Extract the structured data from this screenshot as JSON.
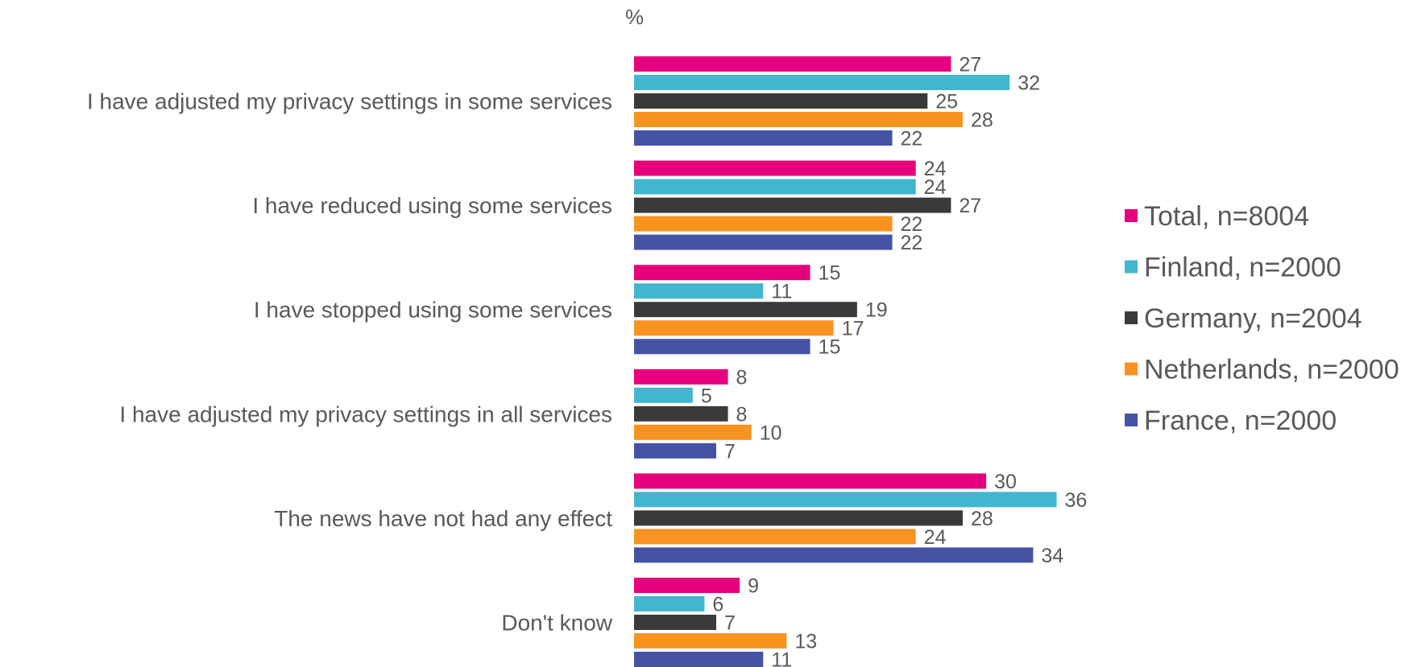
{
  "chart_data": {
    "type": "bar",
    "orientation": "horizontal",
    "unit": "%",
    "categories": [
      "I have adjusted my privacy settings in some services",
      "I have reduced using some services",
      "I have stopped using some services",
      "I have adjusted my privacy settings in all services",
      "The news have not had any effect",
      "Don't know"
    ],
    "series": [
      {
        "name": "Total, n=8004",
        "color": "#E6007E",
        "values": [
          27,
          24,
          15,
          8,
          30,
          9
        ]
      },
      {
        "name": "Finland, n=2000",
        "color": "#41B6CE",
        "values": [
          32,
          24,
          11,
          5,
          36,
          6
        ]
      },
      {
        "name": "Germany, n=2004",
        "color": "#3A3A3A",
        "values": [
          25,
          27,
          19,
          8,
          28,
          7
        ]
      },
      {
        "name": "Netherlands, n=2000",
        "color": "#F7931E",
        "values": [
          28,
          22,
          17,
          10,
          24,
          13
        ]
      },
      {
        "name": "France, n=2000",
        "color": "#4553A5",
        "values": [
          22,
          22,
          15,
          7,
          34,
          11
        ]
      }
    ],
    "xlim": [
      0,
      40
    ],
    "grid": false,
    "legend_position": "right"
  }
}
